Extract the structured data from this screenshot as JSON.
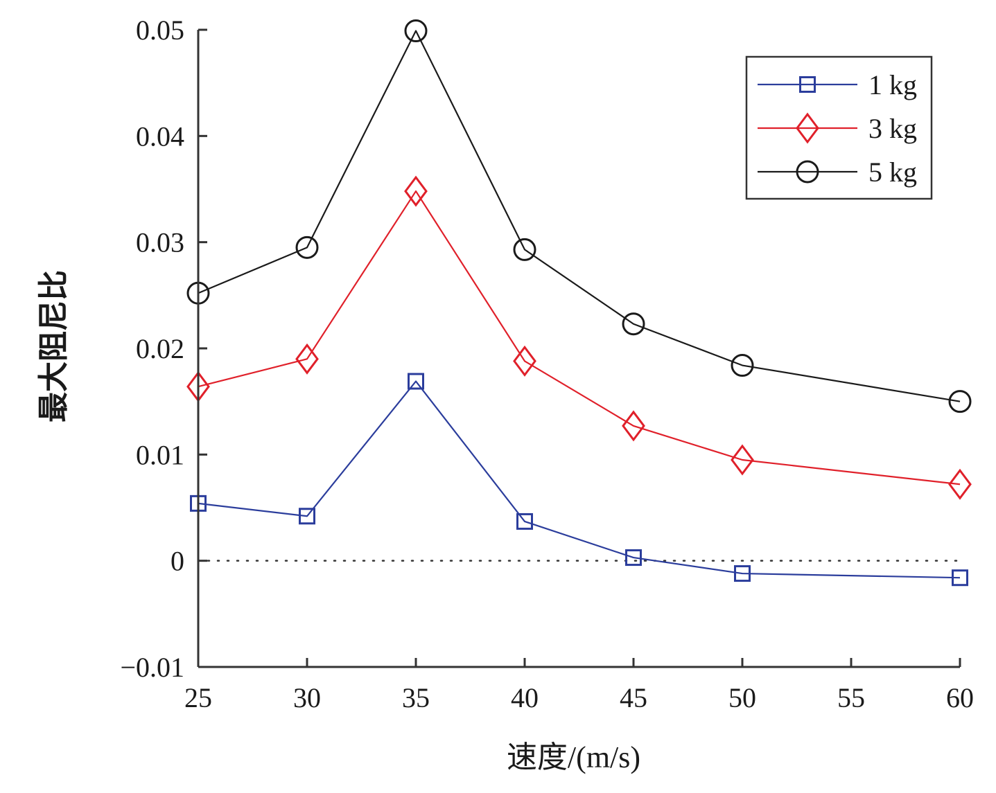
{
  "chart_data": {
    "type": "line",
    "title": "",
    "xlabel": "速度/(m/s)",
    "ylabel": "最大阻尼比",
    "xlim": [
      25,
      60
    ],
    "ylim": [
      -0.01,
      0.05
    ],
    "xticks": [
      25,
      30,
      35,
      40,
      45,
      50,
      55,
      60
    ],
    "xtick_labels": [
      "25",
      "30",
      "35",
      "40",
      "45",
      "50",
      "55",
      "60"
    ],
    "yticks": [
      -0.01,
      0,
      0.01,
      0.02,
      0.03,
      0.04,
      0.05
    ],
    "ytick_labels": [
      "−0.01",
      "0",
      "0.01",
      "0.02",
      "0.03",
      "0.04",
      "0.05"
    ],
    "grid": false,
    "reference_line": {
      "y": 0,
      "style": "dotted"
    },
    "legend_position": "top-right",
    "x": [
      25,
      30,
      35,
      40,
      45,
      50,
      60
    ],
    "series": [
      {
        "name": "1 kg",
        "color": "#2b3d9c",
        "marker": "square",
        "values": [
          0.0054,
          0.0042,
          0.0169,
          0.0037,
          0.0003,
          -0.0012,
          -0.0016
        ]
      },
      {
        "name": "3 kg",
        "color": "#e0202a",
        "marker": "diamond",
        "values": [
          0.0164,
          0.019,
          0.0348,
          0.0188,
          0.0127,
          0.0095,
          0.0072
        ]
      },
      {
        "name": "5 kg",
        "color": "#1a1a1a",
        "marker": "circle",
        "values": [
          0.0252,
          0.0295,
          0.0499,
          0.0293,
          0.0223,
          0.0184,
          0.015
        ]
      }
    ]
  }
}
